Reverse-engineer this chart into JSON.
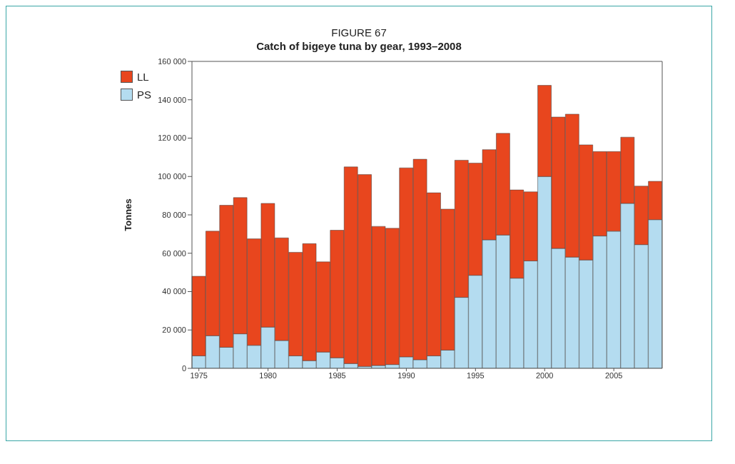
{
  "chart_data": {
    "type": "bar",
    "title": "FIGURE 67",
    "subtitle": "Catch of bigeye tuna by gear, 1993–2008",
    "ylabel": "Tonnes",
    "categories": [
      "1975",
      null,
      null,
      null,
      null,
      "1980",
      null,
      null,
      null,
      null,
      "1985",
      null,
      null,
      null,
      null,
      "1990",
      null,
      null,
      null,
      null,
      "1995",
      null,
      null,
      null,
      null,
      "2000",
      null,
      null,
      null,
      null,
      "2005",
      null,
      null,
      null
    ],
    "stacked": true,
    "series": [
      {
        "name": "PS",
        "color": "#b4dcf0",
        "values": [
          6500,
          17000,
          11000,
          18000,
          12000,
          21500,
          14500,
          6500,
          4000,
          8500,
          5500,
          2500,
          1000,
          1500,
          2000,
          6000,
          4500,
          6500,
          9500,
          37000,
          48500,
          67000,
          69500,
          47000,
          56000,
          100000,
          62500,
          58000,
          56500,
          69000,
          71500,
          86000,
          64500,
          77500
        ]
      },
      {
        "name": "LL",
        "color": "#e8461e",
        "values": [
          41500,
          54500,
          74000,
          71000,
          55500,
          64500,
          53500,
          54000,
          61000,
          47000,
          66500,
          102500,
          100000,
          72500,
          71000,
          98500,
          104500,
          85000,
          73500,
          71500,
          58500,
          47000,
          53000,
          46000,
          36000,
          47500,
          68500,
          74500,
          60000,
          44000,
          41500,
          34500,
          30500,
          20000
        ]
      }
    ],
    "ylim": [
      0,
      160000
    ],
    "yticks": [
      {
        "value": 0,
        "label": "0"
      },
      {
        "value": 20000,
        "label": "20 000"
      },
      {
        "value": 40000,
        "label": "40 000"
      },
      {
        "value": 60000,
        "label": "60 000"
      },
      {
        "value": 80000,
        "label": "80 000"
      },
      {
        "value": 100000,
        "label": "100 000"
      },
      {
        "value": 120000,
        "label": "120 000"
      },
      {
        "value": 140000,
        "label": "140 000"
      },
      {
        "value": 160000,
        "label": "160 000"
      }
    ],
    "legend": "top left"
  }
}
